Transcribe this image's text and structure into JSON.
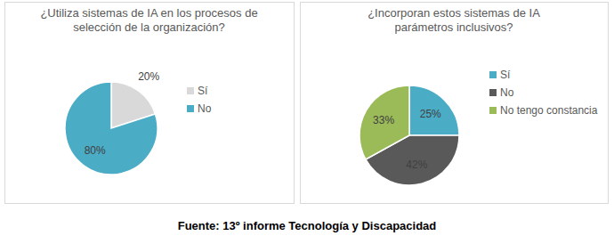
{
  "chart_data": [
    {
      "type": "pie",
      "title": "¿Utiliza sistemas de IA en los procesos de selección de la organización?",
      "categories": [
        "Sí",
        "No"
      ],
      "values": [
        20,
        80
      ],
      "colors": [
        "#d9d9d9",
        "#4bacc6"
      ],
      "data_labels": true,
      "value_labels": [
        "20%",
        "80%"
      ],
      "legend": "right"
    },
    {
      "type": "pie",
      "title": "¿Incorporan estos sistemas de IA parámetros inclusivos?",
      "categories": [
        "Sí",
        "No",
        "No tengo constancia"
      ],
      "values": [
        25,
        42,
        33
      ],
      "colors": [
        "#4bacc6",
        "#595959",
        "#9bbb59"
      ],
      "data_labels": true,
      "value_labels": [
        "25%",
        "42%",
        "33%"
      ],
      "legend": "right"
    }
  ],
  "source": "Fuente: 13º informe Tecnología y Discapacidad"
}
